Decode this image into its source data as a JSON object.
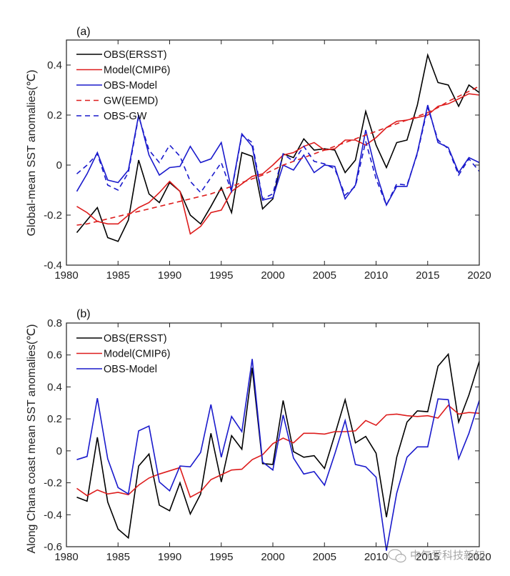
{
  "chart_data": [
    {
      "type": "line",
      "panel_label": "(a)",
      "title": "",
      "xlabel": "",
      "ylabel": "Global-mean SST anomalies(℃)",
      "xlim": [
        1980,
        2020
      ],
      "ylim": [
        -0.4,
        0.5
      ],
      "xticks": [
        1980,
        1985,
        1990,
        1995,
        2000,
        2005,
        2010,
        2015,
        2020
      ],
      "yticks": [
        -0.4,
        -0.2,
        0,
        0.2,
        0.4
      ],
      "ytick_labels": [
        "-0.4",
        "-0.2",
        "0",
        "0.2",
        "0.4"
      ],
      "grid": false,
      "legend_position": "top-left",
      "x": [
        1981,
        1982,
        1983,
        1984,
        1985,
        1986,
        1987,
        1988,
        1989,
        1990,
        1991,
        1992,
        1993,
        1994,
        1995,
        1996,
        1997,
        1998,
        1999,
        2000,
        2001,
        2002,
        2003,
        2004,
        2005,
        2006,
        2007,
        2008,
        2009,
        2010,
        2011,
        2012,
        2013,
        2014,
        2015,
        2016,
        2017,
        2018,
        2019,
        2020
      ],
      "series": [
        {
          "name": "OBS(ERSST)",
          "color": "#000000",
          "style": "solid",
          "values": [
            -0.27,
            -0.22,
            -0.17,
            -0.29,
            -0.305,
            -0.22,
            0.02,
            -0.115,
            -0.15,
            -0.07,
            -0.105,
            -0.2,
            -0.235,
            -0.165,
            -0.09,
            -0.19,
            0.05,
            0.035,
            -0.175,
            -0.135,
            0.045,
            0.03,
            0.105,
            0.06,
            0.065,
            0.06,
            -0.03,
            0.02,
            0.215,
            0.08,
            -0.01,
            0.09,
            0.1,
            0.24,
            0.44,
            0.33,
            0.32,
            0.235,
            0.32,
            0.29
          ]
        },
        {
          "name": "Model(CMIP6)",
          "color": "#dd1c1c",
          "style": "solid",
          "values": [
            -0.165,
            -0.19,
            -0.225,
            -0.235,
            -0.235,
            -0.2,
            -0.17,
            -0.15,
            -0.11,
            -0.065,
            -0.105,
            -0.275,
            -0.245,
            -0.19,
            -0.18,
            -0.105,
            -0.075,
            -0.045,
            -0.035,
            0.0,
            0.04,
            0.05,
            0.075,
            0.09,
            0.06,
            0.065,
            0.1,
            0.1,
            0.08,
            0.11,
            0.15,
            0.175,
            0.18,
            0.19,
            0.2,
            0.235,
            0.245,
            0.265,
            0.285,
            0.28
          ]
        },
        {
          "name": "OBS-Model",
          "color": "#1a1acc",
          "style": "solid",
          "values": [
            -0.105,
            -0.035,
            0.05,
            -0.06,
            -0.07,
            -0.02,
            0.2,
            0.04,
            -0.04,
            -0.01,
            -0.005,
            0.075,
            0.01,
            0.025,
            0.09,
            -0.1,
            0.125,
            0.075,
            -0.14,
            -0.13,
            0.0,
            -0.02,
            0.04,
            -0.03,
            0.0,
            -0.005,
            -0.135,
            -0.08,
            0.14,
            -0.03,
            -0.16,
            -0.085,
            -0.085,
            0.05,
            0.24,
            0.09,
            0.07,
            -0.03,
            0.03,
            0.01
          ]
        },
        {
          "name": "GW(EEMD)",
          "color": "#dd1c1c",
          "style": "dashed",
          "values": [
            -0.24,
            -0.235,
            -0.225,
            -0.215,
            -0.205,
            -0.195,
            -0.185,
            -0.175,
            -0.165,
            -0.155,
            -0.145,
            -0.135,
            -0.125,
            -0.115,
            -0.1,
            -0.085,
            -0.07,
            -0.055,
            -0.04,
            -0.02,
            0.0,
            0.015,
            0.03,
            0.045,
            0.06,
            0.075,
            0.09,
            0.105,
            0.12,
            0.135,
            0.15,
            0.165,
            0.18,
            0.195,
            0.21,
            0.23,
            0.255,
            0.275,
            0.295,
            0.315
          ]
        },
        {
          "name": "OBS-GW",
          "color": "#1a1acc",
          "style": "dashed",
          "values": [
            -0.035,
            0.0,
            0.045,
            -0.08,
            -0.1,
            -0.03,
            0.195,
            0.06,
            0.01,
            0.08,
            0.035,
            -0.065,
            -0.11,
            -0.05,
            0.01,
            -0.105,
            0.12,
            0.09,
            -0.135,
            -0.115,
            0.045,
            0.015,
            0.075,
            0.015,
            0.005,
            -0.015,
            -0.12,
            -0.085,
            0.095,
            -0.055,
            -0.16,
            -0.075,
            -0.08,
            0.045,
            0.23,
            0.1,
            0.065,
            -0.04,
            0.025,
            -0.025
          ]
        }
      ]
    },
    {
      "type": "line",
      "panel_label": "(b)",
      "title": "",
      "xlabel": "",
      "ylabel": "Along Chana coast mean SST anomalies(℃)",
      "xlim": [
        1980,
        2020
      ],
      "ylim": [
        -0.6,
        0.8
      ],
      "xticks": [
        1980,
        1985,
        1990,
        1995,
        2000,
        2005,
        2010,
        2015,
        2020
      ],
      "yticks": [
        -0.6,
        -0.4,
        -0.2,
        0,
        0.2,
        0.4,
        0.6,
        0.8
      ],
      "ytick_labels": [
        "-0.6",
        "-0.4",
        "-0.2",
        "0",
        "0.2",
        "0.4",
        "0.6",
        "0.8"
      ],
      "grid": false,
      "legend_position": "top-left",
      "x": [
        1981,
        1982,
        1983,
        1984,
        1985,
        1986,
        1987,
        1988,
        1989,
        1990,
        1991,
        1992,
        1993,
        1994,
        1995,
        1996,
        1997,
        1998,
        1999,
        2000,
        2001,
        2002,
        2003,
        2004,
        2005,
        2006,
        2007,
        2008,
        2009,
        2010,
        2011,
        2012,
        2013,
        2014,
        2015,
        2016,
        2017,
        2018,
        2019,
        2020
      ],
      "series": [
        {
          "name": "OBS(ERSST)",
          "color": "#000000",
          "style": "solid",
          "values": [
            -0.29,
            -0.315,
            0.085,
            -0.32,
            -0.49,
            -0.545,
            -0.095,
            -0.02,
            -0.34,
            -0.375,
            -0.2,
            -0.395,
            -0.27,
            0.11,
            -0.195,
            0.095,
            0.01,
            0.52,
            -0.08,
            -0.085,
            0.315,
            -0.005,
            -0.04,
            -0.03,
            -0.11,
            0.1,
            0.32,
            0.05,
            0.09,
            -0.015,
            -0.415,
            -0.04,
            0.18,
            0.25,
            0.245,
            0.53,
            0.605,
            0.18,
            0.35,
            0.56
          ]
        },
        {
          "name": "Model(CMIP6)",
          "color": "#dd1c1c",
          "style": "solid",
          "values": [
            -0.235,
            -0.28,
            -0.245,
            -0.27,
            -0.26,
            -0.275,
            -0.215,
            -0.17,
            -0.145,
            -0.125,
            -0.105,
            -0.29,
            -0.255,
            -0.18,
            -0.15,
            -0.12,
            -0.115,
            -0.055,
            -0.025,
            0.045,
            0.08,
            0.05,
            0.11,
            0.11,
            0.105,
            0.12,
            0.12,
            0.125,
            0.19,
            0.16,
            0.225,
            0.23,
            0.22,
            0.215,
            0.22,
            0.205,
            0.285,
            0.23,
            0.24,
            0.235
          ]
        },
        {
          "name": "OBS-Model",
          "color": "#1a1acc",
          "style": "solid",
          "values": [
            -0.055,
            -0.035,
            0.33,
            -0.05,
            -0.23,
            -0.27,
            0.125,
            0.155,
            -0.195,
            -0.25,
            -0.095,
            -0.1,
            -0.01,
            0.29,
            -0.04,
            0.215,
            0.12,
            0.575,
            -0.07,
            -0.12,
            0.225,
            -0.045,
            -0.145,
            -0.13,
            -0.215,
            -0.02,
            0.19,
            -0.085,
            -0.1,
            -0.165,
            -0.625,
            -0.265,
            -0.04,
            0.025,
            0.025,
            0.325,
            0.32,
            -0.05,
            0.11,
            0.315
          ]
        }
      ]
    }
  ],
  "watermark": {
    "icon": "wechat-bubble-icon",
    "text": "中气爱科技新知"
  }
}
